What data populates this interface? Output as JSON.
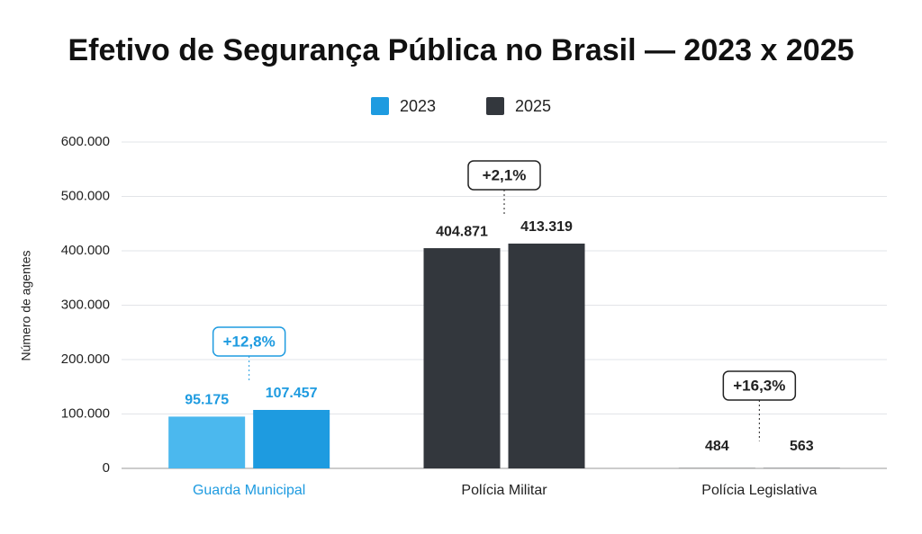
{
  "chart_data": {
    "type": "bar",
    "title": "Efetivo de Segurança Pública no Brasil — 2023 x 2025",
    "y_label": "Número de agentes",
    "categories": [
      "Guarda Municipal",
      "Polícia Militar",
      "Polícia Legislativa"
    ],
    "category_colors": [
      "#1e9be0",
      "#222222",
      "#222222"
    ],
    "series": [
      {
        "name": "2023",
        "color": "#1e9be0",
        "colors": [
          "#4bb8ee",
          "#33373d",
          "#33373d"
        ],
        "values": [
          95175,
          404871,
          484
        ],
        "value_labels": [
          "95.175",
          "404.871",
          "484"
        ],
        "label_colors": [
          "#1e9be0",
          "#222222",
          "#222222"
        ]
      },
      {
        "name": "2025",
        "color": "#33373d",
        "colors": [
          "#1e9be0",
          "#33373d",
          "#33373d"
        ],
        "values": [
          107457,
          413319,
          563
        ],
        "value_labels": [
          "107.457",
          "413.319",
          "563"
        ],
        "label_colors": [
          "#1e9be0",
          "#222222",
          "#222222"
        ]
      }
    ],
    "annotations": [
      {
        "text": "+12,8%",
        "color": "#1e9be0"
      },
      {
        "text": "+2,1%",
        "color": "#222222"
      },
      {
        "text": "+16,3%",
        "color": "#222222"
      }
    ],
    "ylim": [
      0,
      600000
    ],
    "yticks": [
      0,
      {
        "value": 100000,
        "label": "100.000"
      },
      {
        "value": 200000,
        "label": "200.000"
      },
      {
        "value": 300000,
        "label": "300.000"
      },
      {
        "value": 400000,
        "label": "400.000"
      },
      {
        "value": 500000,
        "label": "500.000"
      },
      {
        "value": 600000,
        "label": "600.000"
      }
    ],
    "grid": true,
    "legend": "top"
  }
}
